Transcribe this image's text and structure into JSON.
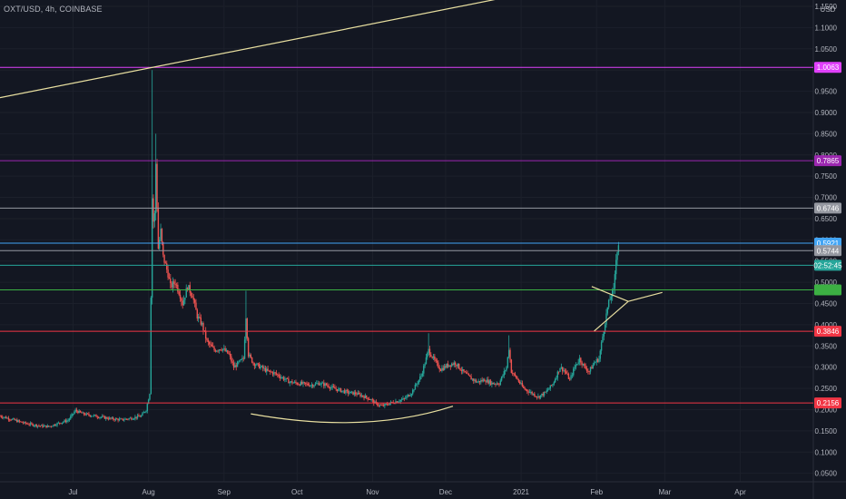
{
  "header": {
    "symbol_line": "OXT/USD, 4h, COINBASE"
  },
  "chart_data": {
    "type": "candlestick",
    "currency_label": "USD",
    "y_ticks": [
      "1.1500",
      "1.1000",
      "1.0500",
      "1.0000",
      "0.9500",
      "0.9000",
      "0.8500",
      "0.8000",
      "0.7500",
      "0.7000",
      "0.6500",
      "0.6000",
      "0.5500",
      "0.5000",
      "0.4500",
      "0.4000",
      "0.3500",
      "0.3000",
      "0.2500",
      "0.2000",
      "0.1500",
      "0.1000",
      "0.0500"
    ],
    "y_tick_values": [
      1.15,
      1.1,
      1.05,
      1.0,
      0.95,
      0.9,
      0.85,
      0.8,
      0.75,
      0.7,
      0.65,
      0.6,
      0.55,
      0.5,
      0.45,
      0.4,
      0.35,
      0.3,
      0.25,
      0.2,
      0.15,
      0.1,
      0.05
    ],
    "ylim": [
      0.03,
      1.165
    ],
    "x_labels": [
      "Jul",
      "Aug",
      "Sep",
      "Oct",
      "Nov",
      "Dec",
      "2021",
      "Feb",
      "Mar",
      "Apr"
    ],
    "x_label_days": [
      30,
      61,
      92,
      122,
      153,
      183,
      214,
      245,
      273,
      304
    ],
    "x_range_days": [
      0,
      334
    ],
    "horizontal_levels": [
      {
        "value": 1.0063,
        "label": "1.0063",
        "color": "#e040fb"
      },
      {
        "value": 0.7865,
        "label": "0.7865",
        "color": "#9c27b0"
      },
      {
        "value": 0.6746,
        "label": "0.6746",
        "color": "#9598a1"
      },
      {
        "value": 0.5921,
        "label": "0.5921",
        "color": "#42a5f5"
      },
      {
        "value": 0.5744,
        "label": "0.5744",
        "color": "#9598a1"
      },
      {
        "value": 0.54,
        "label": "02:52:45",
        "color": "#26a69a"
      },
      {
        "value": 0.482,
        "label": "",
        "color": "#3cb043"
      },
      {
        "value": 0.3846,
        "label": "0.3846",
        "color": "#f23645"
      },
      {
        "value": 0.2156,
        "label": "0.2156",
        "color": "#f23645"
      }
    ],
    "price_path": [
      [
        0,
        0.185
      ],
      [
        6,
        0.175
      ],
      [
        10,
        0.168
      ],
      [
        16,
        0.162
      ],
      [
        20,
        0.16
      ],
      [
        24,
        0.168
      ],
      [
        28,
        0.175
      ],
      [
        31,
        0.198
      ],
      [
        34,
        0.19
      ],
      [
        38,
        0.186
      ],
      [
        42,
        0.182
      ],
      [
        46,
        0.178
      ],
      [
        50,
        0.176
      ],
      [
        54,
        0.18
      ],
      [
        58,
        0.185
      ],
      [
        60,
        0.2
      ],
      [
        61.5,
        0.24
      ],
      [
        62.5,
        0.7
      ],
      [
        63.3,
        0.61
      ],
      [
        64,
        0.78
      ],
      [
        65,
        0.58
      ],
      [
        66,
        0.62
      ],
      [
        67,
        0.56
      ],
      [
        68,
        0.54
      ],
      [
        69,
        0.52
      ],
      [
        70,
        0.49
      ],
      [
        72,
        0.5
      ],
      [
        74,
        0.47
      ],
      [
        75,
        0.45
      ],
      [
        77,
        0.49
      ],
      [
        79,
        0.47
      ],
      [
        81,
        0.42
      ],
      [
        83,
        0.4
      ],
      [
        85,
        0.36
      ],
      [
        88,
        0.34
      ],
      [
        91,
        0.345
      ],
      [
        94,
        0.33
      ],
      [
        96,
        0.3
      ],
      [
        98,
        0.31
      ],
      [
        100,
        0.32
      ],
      [
        101,
        0.42
      ],
      [
        102,
        0.33
      ],
      [
        104,
        0.31
      ],
      [
        107,
        0.3
      ],
      [
        110,
        0.29
      ],
      [
        113,
        0.285
      ],
      [
        116,
        0.275
      ],
      [
        119,
        0.265
      ],
      [
        122,
        0.262
      ],
      [
        125,
        0.26
      ],
      [
        128,
        0.258
      ],
      [
        131,
        0.262
      ],
      [
        134,
        0.258
      ],
      [
        137,
        0.25
      ],
      [
        140,
        0.245
      ],
      [
        143,
        0.24
      ],
      [
        146,
        0.238
      ],
      [
        149,
        0.232
      ],
      [
        152,
        0.225
      ],
      [
        154,
        0.215
      ],
      [
        157,
        0.208
      ],
      [
        160,
        0.215
      ],
      [
        163,
        0.22
      ],
      [
        166,
        0.225
      ],
      [
        169,
        0.24
      ],
      [
        171,
        0.26
      ],
      [
        173,
        0.28
      ],
      [
        176,
        0.34
      ],
      [
        179,
        0.31
      ],
      [
        181,
        0.295
      ],
      [
        184,
        0.305
      ],
      [
        187,
        0.31
      ],
      [
        190,
        0.29
      ],
      [
        193,
        0.275
      ],
      [
        196,
        0.265
      ],
      [
        199,
        0.27
      ],
      [
        202,
        0.262
      ],
      [
        205,
        0.262
      ],
      [
        208,
        0.3
      ],
      [
        209,
        0.345
      ],
      [
        210,
        0.29
      ],
      [
        212,
        0.275
      ],
      [
        215,
        0.25
      ],
      [
        218,
        0.24
      ],
      [
        221,
        0.23
      ],
      [
        224,
        0.24
      ],
      [
        227,
        0.26
      ],
      [
        230,
        0.3
      ],
      [
        232,
        0.29
      ],
      [
        234,
        0.27
      ],
      [
        236,
        0.3
      ],
      [
        238,
        0.32
      ],
      [
        240,
        0.3
      ],
      [
        242,
        0.29
      ],
      [
        244,
        0.31
      ],
      [
        246,
        0.32
      ],
      [
        248,
        0.39
      ],
      [
        249.5,
        0.44
      ],
      [
        251,
        0.47
      ],
      [
        252,
        0.48
      ],
      [
        253,
        0.56
      ],
      [
        254,
        0.59
      ]
    ],
    "drawn_lines": [
      {
        "kind": "trendline",
        "color": "#e8dfa0",
        "from": [
          0,
          0.935
        ],
        "to": [
          211,
          1.175
        ]
      },
      {
        "kind": "triangle-upper",
        "color": "#e8dfa0",
        "from": [
          243,
          0.49
        ],
        "to": [
          258,
          0.455
        ]
      },
      {
        "kind": "triangle-lower",
        "color": "#e8dfa0",
        "from": [
          244,
          0.385
        ],
        "to": [
          258,
          0.455
        ]
      },
      {
        "kind": "triangle-apex",
        "color": "#e8dfa0",
        "from": [
          258,
          0.455
        ],
        "to": [
          272,
          0.476
        ]
      },
      {
        "kind": "rounded-bottom",
        "color": "#e8dfa0",
        "from": [
          103,
          0.19
        ],
        "mid": [
          150,
          0.17
        ],
        "to": [
          186,
          0.208
        ]
      }
    ],
    "colors": {
      "up": "#26a69a",
      "down": "#ef5350",
      "background": "#131722",
      "axis_text": "#b2b5be",
      "grid": "#1c202b"
    }
  }
}
